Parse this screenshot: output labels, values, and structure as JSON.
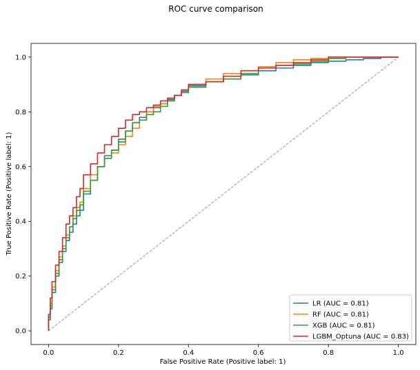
{
  "figure": {
    "suptitle": "ROC curve comparison"
  },
  "chart_data": {
    "type": "line",
    "title": "ROC curve comparison",
    "xlabel": "False Positive Rate (Positive label: 1)",
    "ylabel": "True Positive Rate (Positive label: 1)",
    "xlim": [
      -0.05,
      1.05
    ],
    "ylim": [
      -0.05,
      1.05
    ],
    "xticks": [
      "0.0",
      "0.2",
      "0.4",
      "0.6",
      "0.8",
      "1.0"
    ],
    "yticks": [
      "0.0",
      "0.2",
      "0.4",
      "0.6",
      "0.8",
      "1.0"
    ],
    "grid": false,
    "legend_position": "lower-right",
    "chance_line": {
      "x": [
        0,
        1
      ],
      "y": [
        0,
        1
      ],
      "style": "dashed",
      "color": "#999999"
    },
    "series": [
      {
        "name": "LR (AUC = 0.81)",
        "color": "#1f77b4",
        "x": [
          0.0,
          0.005,
          0.01,
          0.02,
          0.03,
          0.04,
          0.05,
          0.06,
          0.07,
          0.08,
          0.09,
          0.1,
          0.12,
          0.14,
          0.16,
          0.18,
          0.2,
          0.22,
          0.24,
          0.26,
          0.28,
          0.3,
          0.32,
          0.34,
          0.36,
          0.38,
          0.4,
          0.45,
          0.5,
          0.55,
          0.6,
          0.65,
          0.7,
          0.75,
          0.8,
          0.85,
          0.9,
          0.95,
          1.0
        ],
        "y": [
          0.0,
          0.04,
          0.08,
          0.14,
          0.2,
          0.25,
          0.29,
          0.33,
          0.36,
          0.39,
          0.42,
          0.44,
          0.5,
          0.55,
          0.6,
          0.64,
          0.66,
          0.7,
          0.73,
          0.76,
          0.78,
          0.8,
          0.815,
          0.83,
          0.845,
          0.86,
          0.875,
          0.895,
          0.91,
          0.92,
          0.935,
          0.95,
          0.96,
          0.97,
          0.98,
          0.985,
          0.99,
          0.995,
          1.0
        ]
      },
      {
        "name": "RF (AUC = 0.81)",
        "color": "#ff7f0e",
        "x": [
          0.0,
          0.005,
          0.01,
          0.02,
          0.03,
          0.04,
          0.05,
          0.06,
          0.07,
          0.08,
          0.09,
          0.1,
          0.12,
          0.14,
          0.16,
          0.18,
          0.2,
          0.22,
          0.24,
          0.26,
          0.28,
          0.3,
          0.32,
          0.34,
          0.36,
          0.38,
          0.4,
          0.45,
          0.5,
          0.55,
          0.6,
          0.65,
          0.7,
          0.75,
          0.8,
          0.85,
          0.9,
          0.95,
          1.0
        ],
        "y": [
          0.0,
          0.05,
          0.1,
          0.16,
          0.22,
          0.27,
          0.31,
          0.35,
          0.38,
          0.42,
          0.45,
          0.47,
          0.52,
          0.57,
          0.6,
          0.63,
          0.65,
          0.68,
          0.71,
          0.74,
          0.77,
          0.8,
          0.82,
          0.83,
          0.84,
          0.86,
          0.88,
          0.9,
          0.92,
          0.94,
          0.95,
          0.965,
          0.98,
          0.99,
          0.995,
          1.0,
          1.0,
          1.0,
          1.0
        ]
      },
      {
        "name": "XGB (AUC = 0.81)",
        "color": "#2ca02c",
        "x": [
          0.0,
          0.005,
          0.01,
          0.02,
          0.03,
          0.04,
          0.05,
          0.06,
          0.07,
          0.08,
          0.09,
          0.1,
          0.12,
          0.14,
          0.16,
          0.18,
          0.2,
          0.22,
          0.24,
          0.26,
          0.28,
          0.3,
          0.32,
          0.34,
          0.36,
          0.38,
          0.4,
          0.45,
          0.5,
          0.55,
          0.6,
          0.65,
          0.7,
          0.75,
          0.8,
          0.85,
          0.9,
          0.95,
          1.0
        ],
        "y": [
          0.0,
          0.05,
          0.09,
          0.15,
          0.21,
          0.26,
          0.3,
          0.34,
          0.38,
          0.41,
          0.44,
          0.46,
          0.51,
          0.55,
          0.6,
          0.63,
          0.66,
          0.69,
          0.73,
          0.76,
          0.77,
          0.79,
          0.8,
          0.82,
          0.84,
          0.86,
          0.87,
          0.89,
          0.91,
          0.92,
          0.94,
          0.96,
          0.97,
          0.975,
          0.985,
          0.995,
          1.0,
          1.0,
          1.0
        ]
      },
      {
        "name": "LGBM_Optuna (AUC = 0.83)",
        "color": "#d62728",
        "x": [
          0.0,
          0.005,
          0.01,
          0.02,
          0.03,
          0.04,
          0.05,
          0.06,
          0.07,
          0.08,
          0.09,
          0.1,
          0.12,
          0.14,
          0.16,
          0.18,
          0.2,
          0.22,
          0.24,
          0.26,
          0.28,
          0.3,
          0.32,
          0.34,
          0.36,
          0.38,
          0.4,
          0.45,
          0.5,
          0.55,
          0.6,
          0.65,
          0.7,
          0.75,
          0.8,
          0.85,
          0.9,
          0.95,
          1.0
        ],
        "y": [
          0.0,
          0.06,
          0.12,
          0.18,
          0.24,
          0.29,
          0.34,
          0.39,
          0.42,
          0.45,
          0.49,
          0.52,
          0.57,
          0.61,
          0.65,
          0.68,
          0.71,
          0.74,
          0.77,
          0.79,
          0.8,
          0.815,
          0.825,
          0.84,
          0.85,
          0.86,
          0.88,
          0.9,
          0.91,
          0.93,
          0.95,
          0.96,
          0.97,
          0.98,
          0.99,
          1.0,
          1.0,
          1.0,
          1.0
        ]
      }
    ]
  }
}
